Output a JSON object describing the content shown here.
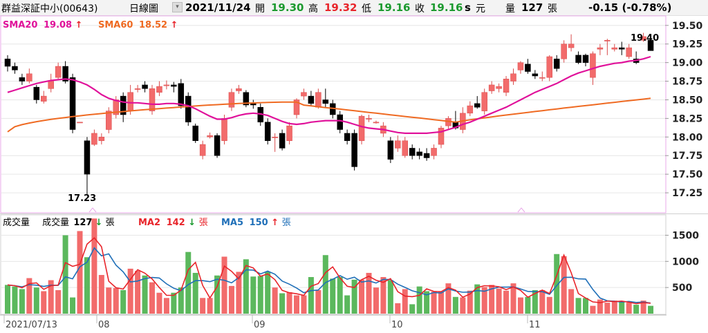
{
  "header": {
    "stock_name": "群益深証中小(00643)",
    "chart_label": "日線圖",
    "date": "2021/11/24",
    "open_label": "開",
    "open": "19.30",
    "high_label": "高",
    "high": "19.32",
    "low_label": "低",
    "low": "19.16",
    "close_label": "收",
    "close": "19.16",
    "unit_s": "s",
    "unit_yuan": "元",
    "volume_label": "量",
    "volume": "127",
    "volume_unit": "張",
    "change": "-0.15 (-0.78%)"
  },
  "price_legend": {
    "sma20_label": "SMA20",
    "sma20_value": "19.08",
    "sma20_arrow": "↑",
    "sma60_label": "SMA60",
    "sma60_value": "18.52",
    "sma60_arrow": "↑"
  },
  "volume_legend": {
    "title": "成交量",
    "vol_label": "成交量",
    "vol_value": "127",
    "vol_arrow": "↓",
    "vol_unit": "張",
    "ma2_label": "MA2",
    "ma2_value": "142",
    "ma2_arrow": "↓",
    "ma2_unit": "張",
    "ma5_label": "MA5",
    "ma5_value": "150",
    "ma5_arrow": "↑",
    "ma5_unit": "張"
  },
  "annotations": {
    "max_label": "19.40",
    "min_label": "17.23"
  },
  "x_axis_labels": [
    "2021/07/13",
    "08",
    "09",
    "10",
    "11"
  ],
  "colors": {
    "up": "#f26b6b",
    "down": "#000000",
    "vol_up": "#f26b6b",
    "vol_down": "#5bb85d",
    "sma20": "#e0119a",
    "sma60": "#ef6a22",
    "ma2": "#e8242a",
    "ma5": "#1f6fb8",
    "border": "#e8a8e8"
  },
  "chart_data": {
    "type": "candlestick",
    "price_axis": {
      "ticks": [
        17.25,
        17.5,
        17.75,
        18.0,
        18.25,
        18.5,
        18.75,
        19.0,
        19.25,
        19.5
      ],
      "range": [
        17.0,
        19.6
      ]
    },
    "volume_axis": {
      "ticks": [
        500,
        1000,
        1500
      ],
      "range": [
        0,
        1850
      ]
    },
    "candles": [],
    "sma20": [],
    "sma60": []
  }
}
